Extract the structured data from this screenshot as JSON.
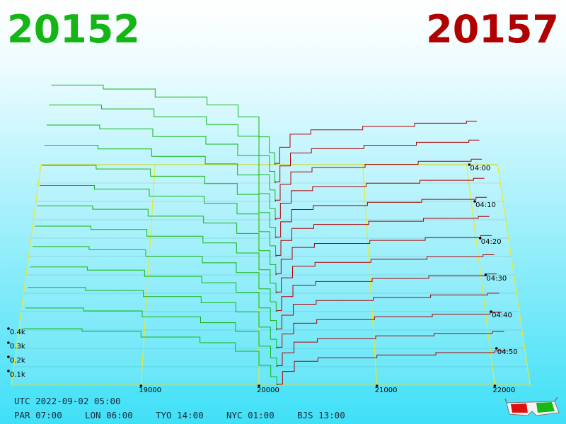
{
  "chart_data": {
    "type": "depth3d",
    "bid_label": "20152",
    "ask_label": "20157",
    "bid_color": "#15b515",
    "ask_color": "#b00000",
    "floor_color": "#e8e830",
    "price_range": [
      17900,
      22300
    ],
    "price_ticks": [
      19000,
      20000,
      21000,
      22000
    ],
    "depth_ticks": [
      {
        "value": 100,
        "label": "0.1k"
      },
      {
        "value": 200,
        "label": "0.2k"
      },
      {
        "value": 300,
        "label": "0.3k"
      },
      {
        "value": 400,
        "label": "0.4k"
      }
    ],
    "time_range": [
      0,
      60
    ],
    "time_ticks": [
      {
        "value": 0,
        "label": "04:00"
      },
      {
        "value": 10,
        "label": "04:10"
      },
      {
        "value": 20,
        "label": "04:20"
      },
      {
        "value": 30,
        "label": "04:30"
      },
      {
        "value": 40,
        "label": "04:40"
      },
      {
        "value": 50,
        "label": "04:50"
      }
    ],
    "bid_prices": [
      18000,
      18500,
      19000,
      19500,
      19800,
      20000,
      20100,
      20152
    ],
    "ask_prices": [
      20157,
      20200,
      20300,
      20500,
      21000,
      21500,
      22000,
      22100
    ],
    "snapshots": [
      {
        "t": 0,
        "bids": [
          640,
          608,
          544,
          480,
          384,
          224,
          96,
          19
        ],
        "asks": [
          11,
          140,
          245,
          280,
          308,
          333,
          350,
          350
        ]
      },
      {
        "t": 5,
        "bids": [
          620,
          589,
          527,
          465,
          372,
          217,
          93,
          19
        ],
        "asks": [
          10,
          136,
          239,
          273,
          300,
          324,
          341,
          341
        ]
      },
      {
        "t": 10,
        "bids": [
          600,
          570,
          510,
          450,
          360,
          210,
          90,
          18
        ],
        "asks": [
          10,
          133,
          232,
          266,
          292,
          315,
          332,
          332
        ]
      },
      {
        "t": 15,
        "bids": [
          580,
          551,
          493,
          435,
          348,
          203,
          87,
          17
        ],
        "asks": [
          10,
          129,
          226,
          258,
          284,
          307,
          323,
          323
        ]
      },
      {
        "t": 20,
        "bids": [
          560,
          532,
          476,
          420,
          336,
          196,
          84,
          17
        ],
        "asks": [
          9,
          126,
          220,
          251,
          276,
          298,
          314,
          314
        ]
      },
      {
        "t": 25,
        "bids": [
          540,
          513,
          459,
          405,
          324,
          189,
          81,
          16
        ],
        "asks": [
          9,
          122,
          214,
          244,
          268,
          290,
          305,
          305
        ]
      },
      {
        "t": 30,
        "bids": [
          520,
          494,
          442,
          390,
          312,
          182,
          78,
          16
        ],
        "asks": [
          9,
          118,
          207,
          237,
          260,
          281,
          296,
          296
        ]
      },
      {
        "t": 35,
        "bids": [
          500,
          475,
          425,
          375,
          300,
          175,
          75,
          15
        ],
        "asks": [
          9,
          115,
          201,
          230,
          253,
          273,
          287,
          287
        ]
      },
      {
        "t": 40,
        "bids": [
          480,
          456,
          408,
          360,
          288,
          168,
          72,
          14
        ],
        "asks": [
          8,
          111,
          195,
          222,
          245,
          264,
          278,
          278
        ]
      },
      {
        "t": 45,
        "bids": [
          460,
          437,
          391,
          345,
          276,
          161,
          69,
          14
        ],
        "asks": [
          8,
          108,
          188,
          215,
          237,
          256,
          269,
          269
        ]
      },
      {
        "t": 50,
        "bids": [
          440,
          418,
          374,
          330,
          264,
          154,
          66,
          13
        ],
        "asks": [
          8,
          104,
          182,
          208,
          229,
          247,
          260,
          260
        ]
      },
      {
        "t": 55,
        "bids": [
          420,
          399,
          357,
          315,
          252,
          147,
          63,
          13
        ],
        "asks": [
          8,
          100,
          176,
          201,
          221,
          238,
          251,
          251
        ]
      },
      {
        "t": 60,
        "bids": [
          400,
          380,
          340,
          300,
          240,
          140,
          60,
          12
        ],
        "asks": [
          7,
          97,
          169,
          194,
          213,
          230,
          242,
          242
        ]
      }
    ],
    "footer": {
      "utc": "UTC 2022-09-02 05:00",
      "cities": [
        "PAR 07:00",
        "LON 06:00",
        "TYO 14:00",
        "NYC 01:00",
        "BJS 13:00"
      ]
    }
  }
}
